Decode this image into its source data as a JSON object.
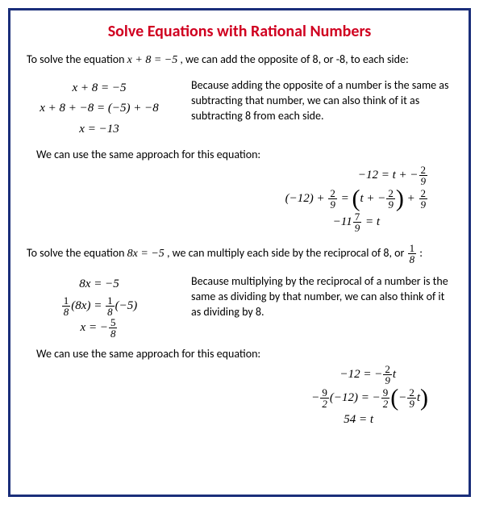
{
  "title": "Solve Equations with Rational Numbers",
  "intro1_a": "To solve the equation ",
  "intro1_eq": "x + 8 = −5",
  "intro1_b": " , we can add the opposite of 8, or -8, to each side:",
  "block1": {
    "l1": "x + 8 = −5",
    "l2": "x + 8 + −8 = (−5) + −8",
    "l3": "x = −13"
  },
  "explain1": "Because adding the opposite of a number is the same as subtracting that number, we can also think of it as subtracting 8 from each side.",
  "same1": "We can use the same approach for this equation:",
  "eq2": {
    "l1_lhs": "−12 = ",
    "l1_rhs_a": "t + −",
    "l1_frac_n": "2",
    "l1_frac_d": "9",
    "l2_a": "(−12) + ",
    "l2_f1n": "2",
    "l2_f1d": "9",
    "l2_mid": " = ",
    "l2_in": "t + −",
    "l2_f2n": "2",
    "l2_f2d": "9",
    "l2_plus": " + ",
    "l2_f3n": "2",
    "l2_f3d": "9",
    "l3_a": "−11",
    "l3_fn": "7",
    "l3_fd": "9",
    "l3_b": " = t"
  },
  "intro2_a": "To solve the equation ",
  "intro2_eq": "8x = −5",
  "intro2_b": ", we can multiply each side by the reciprocal of 8, or ",
  "intro2_fn": "1",
  "intro2_fd": "8",
  "intro2_c": " :",
  "block2": {
    "l1": "8x = −5",
    "l2_f1n": "1",
    "l2_f1d": "8",
    "l2_a": "(8x) = ",
    "l2_f2n": "1",
    "l2_f2d": "8",
    "l2_b": "(−5)",
    "l3_a": "x = −",
    "l3_fn": "5",
    "l3_fd": "8"
  },
  "explain2": "Because multiplying by the reciprocal of a number is the same as dividing by that number,  we can also think of it as dividing by 8.",
  "same2": "We can use the same approach for this equation:",
  "eq4": {
    "l1_a": "−12 = −",
    "l1_fn": "2",
    "l1_fd": "9",
    "l1_b": "t",
    "l2_a": "−",
    "l2_f1n": "9",
    "l2_f1d": "2",
    "l2_b": "(−12) = −",
    "l2_f2n": "9",
    "l2_f2d": "2",
    "l2_c": "−",
    "l2_f3n": "2",
    "l2_f3d": "9",
    "l2_d": "t",
    "l3": "54 = t"
  },
  "colors": {
    "border": "#1a2e7a",
    "title": "#d00020",
    "text": "#000000",
    "bg": "#ffffff"
  }
}
